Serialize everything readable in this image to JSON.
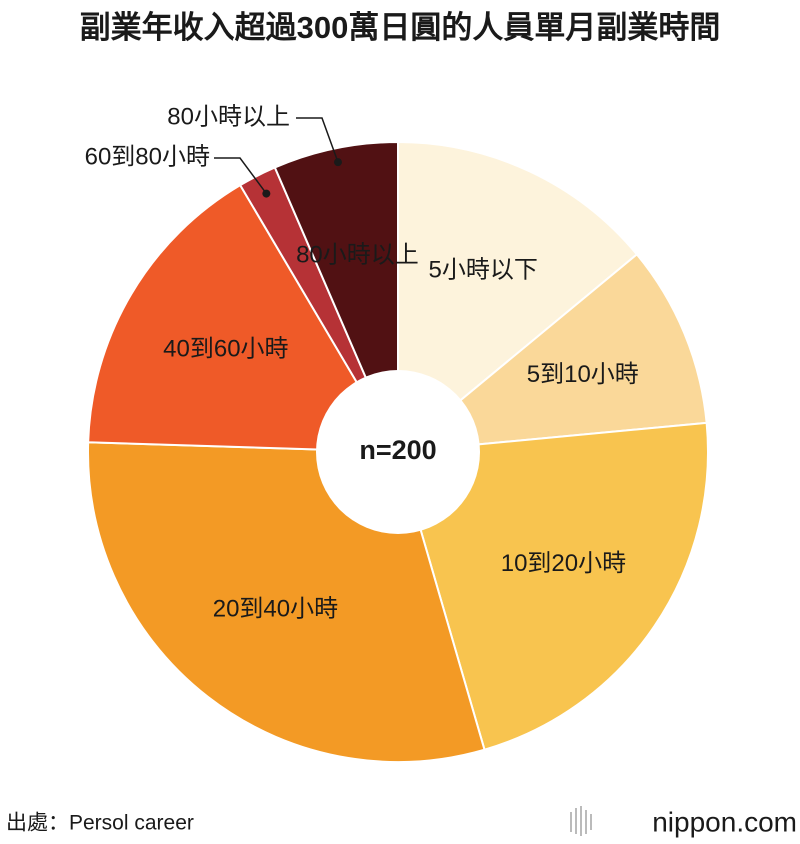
{
  "chart_data": {
    "type": "pie",
    "title": "副業年收入超過300萬日圓的人員單月副業時間",
    "center_label": "n=200",
    "categories": [
      "5小時以下",
      "5到10小時",
      "10到20小時",
      "20到40小時",
      "40到60小時",
      "60到80小時",
      "80小時以上"
    ],
    "values": [
      14,
      9.5,
      22,
      30,
      16,
      2,
      6.5
    ],
    "colors": [
      "#fdf3dc",
      "#fad899",
      "#f8c44f",
      "#f39a25",
      "#ef5a28",
      "#b63236",
      "#511113"
    ],
    "source": "出處：Persol career",
    "logo": "nippon.com"
  }
}
